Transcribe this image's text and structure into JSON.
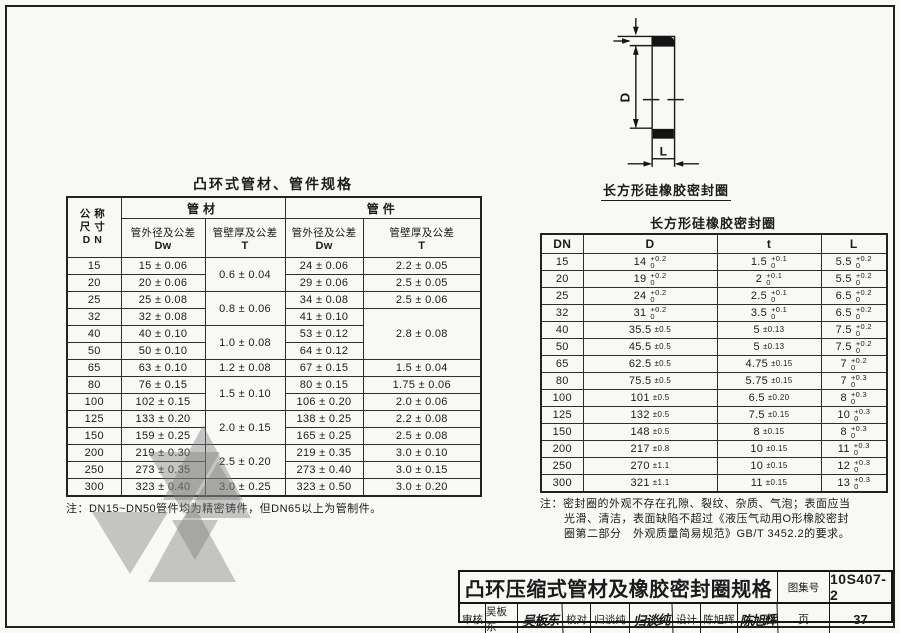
{
  "left_table": {
    "title": "凸环式管材、管件规格",
    "header": {
      "dn_l1": "公称",
      "dn_l2": "尺寸",
      "dn_l3": "DN",
      "pipe": "管材",
      "fitting": "管件",
      "od_label": "管外径及公差",
      "od_sym": "Dw",
      "wall_label": "管壁厚及公差",
      "wall_sym": "T"
    },
    "rows": [
      [
        {
          "t": "15"
        },
        {
          "t": "15 ± 0.06"
        },
        {
          "t": "0.6 ± 0.04",
          "rs": 2
        },
        {
          "t": "24 ± 0.06"
        },
        {
          "t": "2.2 ± 0.05"
        }
      ],
      [
        {
          "t": "20"
        },
        {
          "t": "20 ± 0.06"
        },
        {
          "t": "29 ± 0.06"
        },
        {
          "t": "2.5 ± 0.05"
        }
      ],
      [
        {
          "t": "25"
        },
        {
          "t": "25 ± 0.08"
        },
        {
          "t": "0.8 ± 0.06",
          "rs": 2
        },
        {
          "t": "34 ± 0.08"
        },
        {
          "t": "2.5 ± 0.06"
        }
      ],
      [
        {
          "t": "32"
        },
        {
          "t": "32 ± 0.08"
        },
        {
          "t": "41 ± 0.10"
        },
        {
          "t": "2.8 ± 0.08",
          "rs": 3
        }
      ],
      [
        {
          "t": "40"
        },
        {
          "t": "40 ± 0.10"
        },
        {
          "t": "1.0 ± 0.08",
          "rs": 2
        },
        {
          "t": "53 ± 0.12"
        }
      ],
      [
        {
          "t": "50"
        },
        {
          "t": "50 ± 0.10"
        },
        {
          "t": "64 ± 0.12"
        }
      ],
      [
        {
          "t": "65"
        },
        {
          "t": "63 ± 0.10"
        },
        {
          "t": "1.2 ± 0.08"
        },
        {
          "t": "67 ± 0.15"
        },
        {
          "t": "1.5 ± 0.04"
        }
      ],
      [
        {
          "t": "80"
        },
        {
          "t": "76 ± 0.15"
        },
        {
          "t": "1.5 ± 0.10",
          "rs": 2
        },
        {
          "t": "80 ± 0.15"
        },
        {
          "t": "1.75 ± 0.06"
        }
      ],
      [
        {
          "t": "100"
        },
        {
          "t": "102 ± 0.15"
        },
        {
          "t": "106 ± 0.20"
        },
        {
          "t": "2.0 ± 0.06"
        }
      ],
      [
        {
          "t": "125"
        },
        {
          "t": "133 ± 0.20"
        },
        {
          "t": "2.0 ± 0.15",
          "rs": 2
        },
        {
          "t": "138 ± 0.25"
        },
        {
          "t": "2.2 ± 0.08"
        }
      ],
      [
        {
          "t": "150"
        },
        {
          "t": "159 ± 0.25"
        },
        {
          "t": "165 ± 0.25"
        },
        {
          "t": "2.5 ± 0.08"
        }
      ],
      [
        {
          "t": "200"
        },
        {
          "t": "219 ± 0.30"
        },
        {
          "t": "2.5 ± 0.20",
          "rs": 2
        },
        {
          "t": "219 ± 0.35"
        },
        {
          "t": "3.0 ± 0.10"
        }
      ],
      [
        {
          "t": "250"
        },
        {
          "t": "273 ± 0.35"
        },
        {
          "t": "273 ± 0.40"
        },
        {
          "t": "3.0 ± 0.15"
        }
      ],
      [
        {
          "t": "300"
        },
        {
          "t": "323 ± 0.40"
        },
        {
          "t": "3.0 ± 0.25"
        },
        {
          "t": "323 ± 0.50"
        },
        {
          "t": "3.0 ± 0.20"
        }
      ]
    ],
    "note": "注：DN15~DN50管件均为精密铸件，但DN65以上为管制件。"
  },
  "seal_figure": {
    "label": "长方形硅橡胶密封圈",
    "dim_d": "D",
    "dim_l": "L"
  },
  "right_table": {
    "title": "长方形硅橡胶密封圈",
    "header": {
      "dn": "DN",
      "d": "D",
      "t": "t",
      "l": "L"
    },
    "rows": [
      [
        {
          "t": "15"
        },
        {
          "t": "14",
          "sup": "+0.2",
          "sub": "0"
        },
        {
          "t": "1.5",
          "sup": "+0.1",
          "sub": "0"
        },
        {
          "t": "5.5",
          "sup": "+0.2",
          "sub": "0"
        }
      ],
      [
        {
          "t": "20"
        },
        {
          "t": "19",
          "sup": "+0.2",
          "sub": "0"
        },
        {
          "t": "2",
          "sup": "+0.1",
          "sub": "0"
        },
        {
          "t": "5.5",
          "sup": "+0.2",
          "sub": "0"
        }
      ],
      [
        {
          "t": "25"
        },
        {
          "t": "24",
          "sup": "+0.2",
          "sub": "0"
        },
        {
          "t": "2.5",
          "sup": "+0.1",
          "sub": "0"
        },
        {
          "t": "6.5",
          "sup": "+0.2",
          "sub": "0"
        }
      ],
      [
        {
          "t": "32"
        },
        {
          "t": "31",
          "sup": "+0.2",
          "sub": "0"
        },
        {
          "t": "3.5",
          "sup": "+0.1",
          "sub": "0"
        },
        {
          "t": "6.5",
          "sup": "+0.2",
          "sub": "0"
        }
      ],
      [
        {
          "t": "40"
        },
        {
          "t": "35.5",
          "pm": "±0.5"
        },
        {
          "t": "5",
          "pm": "±0.13"
        },
        {
          "t": "7.5",
          "sup": "+0.2",
          "sub": "0"
        }
      ],
      [
        {
          "t": "50"
        },
        {
          "t": "45.5",
          "pm": "±0.5"
        },
        {
          "t": "5",
          "pm": "±0.13"
        },
        {
          "t": "7.5",
          "sup": "+0.2",
          "sub": "0"
        }
      ],
      [
        {
          "t": "65"
        },
        {
          "t": "62.5",
          "pm": "±0.5"
        },
        {
          "t": "4.75",
          "pm": "±0.15"
        },
        {
          "t": "7",
          "sup": "+0.2",
          "sub": "0"
        }
      ],
      [
        {
          "t": "80"
        },
        {
          "t": "75.5",
          "pm": "±0.5"
        },
        {
          "t": "5.75",
          "pm": "±0.15"
        },
        {
          "t": "7",
          "sup": "+0.3",
          "sub": "0"
        }
      ],
      [
        {
          "t": "100"
        },
        {
          "t": "101",
          "pm": "±0.5"
        },
        {
          "t": "6.5",
          "pm": "±0.20"
        },
        {
          "t": "8",
          "sup": "+0.3",
          "sub": "0"
        }
      ],
      [
        {
          "t": "125"
        },
        {
          "t": "132",
          "pm": "±0.5"
        },
        {
          "t": "7.5",
          "pm": "±0.15"
        },
        {
          "t": "10",
          "sup": "+0.3",
          "sub": "0"
        }
      ],
      [
        {
          "t": "150"
        },
        {
          "t": "148",
          "pm": "±0.5"
        },
        {
          "t": "8",
          "pm": "±0.15"
        },
        {
          "t": "8",
          "sup": "+0.3",
          "sub": "0"
        }
      ],
      [
        {
          "t": "200"
        },
        {
          "t": "217",
          "pm": "±0.8"
        },
        {
          "t": "10",
          "pm": "±0.15"
        },
        {
          "t": "11",
          "sup": "+0.3",
          "sub": "0"
        }
      ],
      [
        {
          "t": "250"
        },
        {
          "t": "270",
          "pm": "±1.1"
        },
        {
          "t": "10",
          "pm": "±0.15"
        },
        {
          "t": "12",
          "sup": "+0.3",
          "sub": "0"
        }
      ],
      [
        {
          "t": "300"
        },
        {
          "t": "321",
          "pm": "±1.1"
        },
        {
          "t": "11",
          "pm": "±0.15"
        },
        {
          "t": "13",
          "sup": "+0.3",
          "sub": "0"
        }
      ]
    ],
    "note_lines": [
      "注：密封圈的外观不存在孔隙、裂纹、杂质、气泡；表面应当",
      "光滑、清洁，表面缺陷不超过《液压气动用O形橡胶密封",
      "圈第二部分　外观质量简易规范》GB/T 3452.2的要求。"
    ]
  },
  "title_block": {
    "title": "凸环压缩式管材及橡胶密封圈规格",
    "atlas_label": "图集号",
    "atlas_no": "10S407-2",
    "page_label": "页",
    "page_no": "37",
    "reviewer_label": "审核",
    "reviewer_name": "吴板东",
    "reviewer_sig": "吴板东",
    "checker_label": "校对",
    "checker_name": "归谈纯",
    "checker_sig": "归谈纯",
    "designer_label": "设计",
    "designer_name": "陈旭辉",
    "designer_sig": "陈旭辉"
  }
}
